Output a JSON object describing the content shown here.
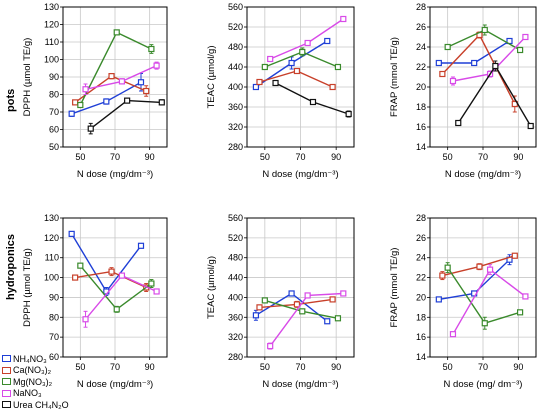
{
  "row_labels": [
    "pots",
    "hydroponics"
  ],
  "legend": [
    {
      "label": "NH₄NO₃",
      "color": "#1f3fd6"
    },
    {
      "label": "Ca(NO₃)₂",
      "color": "#c8402a"
    },
    {
      "label": "Mg(NO₃)₂",
      "color": "#3a8a2c"
    },
    {
      "label": "NaNO₃",
      "color": "#d84ae8"
    },
    {
      "label": "Urea CH₄N₂O",
      "color": "#111111"
    }
  ],
  "chart_data": [
    {
      "type": "line",
      "panel": "pots-dpph",
      "xlabel": "N dose (mg/dm⁻³)",
      "ylabel": "DPPH (µmol TE/g)",
      "xlim": [
        40,
        100
      ],
      "xticks": [
        50,
        70,
        90
      ],
      "ylim": [
        50,
        130
      ],
      "yticks": [
        50,
        60,
        70,
        80,
        90,
        100,
        110,
        120,
        130
      ],
      "series": [
        {
          "name": "NH₄NO₃",
          "x": [
            45,
            65,
            85
          ],
          "y": [
            69,
            76,
            87
          ],
          "err": [
            1.5,
            1.5,
            5
          ]
        },
        {
          "name": "Ca(NO₃)₂",
          "x": [
            47,
            68,
            88
          ],
          "y": [
            75.5,
            90.5,
            82
          ],
          "err": [
            1,
            1.5,
            3
          ]
        },
        {
          "name": "Mg(NO₃)₂",
          "x": [
            50,
            71,
            91
          ],
          "y": [
            74,
            115.5,
            106
          ],
          "err": [
            1,
            1,
            2.5
          ]
        },
        {
          "name": "NaNO₃",
          "x": [
            53,
            74,
            94
          ],
          "y": [
            83,
            87.5,
            96.5
          ],
          "err": [
            3,
            1.5,
            2
          ]
        },
        {
          "name": "Urea CH₄N₂O",
          "x": [
            56,
            77,
            97
          ],
          "y": [
            60.5,
            76.5,
            75.5
          ],
          "err": [
            3,
            1,
            1.5
          ]
        }
      ]
    },
    {
      "type": "line",
      "panel": "pots-teac",
      "xlabel": "N dose (mg/dm⁻³)",
      "ylabel": "TEAC (µmol/g)",
      "xlim": [
        40,
        100
      ],
      "xticks": [
        50,
        70,
        90
      ],
      "ylim": [
        280,
        560
      ],
      "yticks": [
        280,
        320,
        360,
        400,
        440,
        480,
        520,
        560
      ],
      "series": [
        {
          "name": "NH₄NO₃",
          "x": [
            45,
            65,
            85
          ],
          "y": [
            400,
            448,
            492
          ],
          "err": [
            4,
            12,
            4
          ]
        },
        {
          "name": "Ca(NO₃)₂",
          "x": [
            47,
            68,
            88
          ],
          "y": [
            410,
            432,
            400
          ],
          "err": [
            4,
            4,
            4
          ]
        },
        {
          "name": "Mg(NO₃)₂",
          "x": [
            50,
            71,
            91
          ],
          "y": [
            440,
            470,
            440
          ],
          "err": [
            4,
            8,
            4
          ]
        },
        {
          "name": "NaNO₃",
          "x": [
            53,
            74,
            94
          ],
          "y": [
            456,
            488,
            536
          ],
          "err": [
            4,
            4,
            4
          ]
        },
        {
          "name": "Urea CH₄N₂O",
          "x": [
            56,
            77,
            97
          ],
          "y": [
            408,
            370,
            346
          ],
          "err": [
            4,
            4,
            6
          ]
        }
      ]
    },
    {
      "type": "line",
      "panel": "pots-frap",
      "xlabel": "N dose (mg/dm⁻³)",
      "ylabel": "FRAP (mmol TE/g)",
      "xlim": [
        40,
        100
      ],
      "xticks": [
        50,
        70,
        90
      ],
      "ylim": [
        14,
        28
      ],
      "yticks": [
        14,
        16,
        18,
        20,
        22,
        24,
        26,
        28
      ],
      "series": [
        {
          "name": "NH₄NO₃",
          "x": [
            45,
            65,
            85
          ],
          "y": [
            22.4,
            22.4,
            24.6
          ],
          "err": [
            0.2,
            0.2,
            0.2
          ]
        },
        {
          "name": "Ca(NO₃)₂",
          "x": [
            47,
            68,
            88
          ],
          "y": [
            21.3,
            25.2,
            18.3
          ],
          "err": [
            0.2,
            0.3,
            0.8
          ]
        },
        {
          "name": "Mg(NO₃)₂",
          "x": [
            50,
            71,
            91
          ],
          "y": [
            24,
            25.7,
            23.7
          ],
          "err": [
            0.2,
            0.5,
            0.2
          ]
        },
        {
          "name": "NaNO₃",
          "x": [
            53,
            74,
            94
          ],
          "y": [
            20.6,
            21.3,
            25
          ],
          "err": [
            0.4,
            0.3,
            0.2
          ]
        },
        {
          "name": "Urea CH₄N₂O",
          "x": [
            56,
            77,
            97
          ],
          "y": [
            16.4,
            22.1,
            16.1
          ],
          "err": [
            0.1,
            0.5,
            0.1
          ]
        }
      ]
    },
    {
      "type": "line",
      "panel": "hydro-dpph",
      "xlabel": "N dose (mg/dm⁻³)",
      "ylabel": "DPPH (µmol TE/g)",
      "xlim": [
        40,
        100
      ],
      "xticks": [
        50,
        70,
        90
      ],
      "ylim": [
        60,
        130
      ],
      "yticks": [
        60,
        70,
        80,
        90,
        100,
        110,
        120,
        130
      ],
      "series": [
        {
          "name": "NH₄NO₃",
          "x": [
            45,
            65,
            85
          ],
          "y": [
            122,
            93,
            116
          ],
          "err": [
            1,
            2,
            1
          ]
        },
        {
          "name": "Ca(NO₃)₂",
          "x": [
            47,
            68,
            88
          ],
          "y": [
            100,
            103,
            95
          ],
          "err": [
            1,
            2,
            2
          ]
        },
        {
          "name": "Mg(NO₃)₂",
          "x": [
            50,
            71,
            91
          ],
          "y": [
            106,
            84,
            97
          ],
          "err": [
            1,
            1.5,
            2
          ]
        },
        {
          "name": "NaNO₃",
          "x": [
            53,
            74,
            94
          ],
          "y": [
            79,
            101,
            93
          ],
          "err": [
            4,
            1,
            1
          ]
        }
      ]
    },
    {
      "type": "line",
      "panel": "hydro-teac",
      "xlabel": "N dose (mg/dm⁻³)",
      "ylabel": "TEAC (µmol/g)",
      "xlim": [
        40,
        100
      ],
      "xticks": [
        50,
        70,
        90
      ],
      "ylim": [
        280,
        560
      ],
      "yticks": [
        280,
        320,
        360,
        400,
        440,
        480,
        520,
        560
      ],
      "series": [
        {
          "name": "NH₄NO₃",
          "x": [
            45,
            65,
            85
          ],
          "y": [
            364,
            408,
            352
          ],
          "err": [
            10,
            4,
            4
          ]
        },
        {
          "name": "Ca(NO₃)₂",
          "x": [
            47,
            68,
            88
          ],
          "y": [
            380,
            386,
            396
          ],
          "err": [
            4,
            6,
            4
          ]
        },
        {
          "name": "Mg(NO₃)₂",
          "x": [
            50,
            71,
            91
          ],
          "y": [
            394,
            372,
            358
          ],
          "err": [
            4,
            4,
            4
          ]
        },
        {
          "name": "NaNO₃",
          "x": [
            53,
            74,
            94
          ],
          "y": [
            302,
            404,
            408
          ],
          "err": [
            6,
            4,
            4
          ]
        }
      ]
    },
    {
      "type": "line",
      "panel": "hydro-frap",
      "xlabel": "N dose (mg/ dm⁻³)",
      "ylabel": "FRAP (mmol TE/g)",
      "xlim": [
        40,
        100
      ],
      "xticks": [
        50,
        70,
        90
      ],
      "ylim": [
        14,
        28
      ],
      "yticks": [
        14,
        16,
        18,
        20,
        22,
        24,
        26,
        28
      ],
      "series": [
        {
          "name": "NH₄NO₃",
          "x": [
            45,
            65,
            85
          ],
          "y": [
            19.8,
            20.4,
            23.8
          ],
          "err": [
            0.2,
            0.2,
            0.5
          ]
        },
        {
          "name": "Ca(NO₃)₂",
          "x": [
            47,
            68,
            88
          ],
          "y": [
            22.2,
            23.1,
            24.2
          ],
          "err": [
            0.4,
            0.3,
            0.2
          ]
        },
        {
          "name": "Mg(NO₃)₂",
          "x": [
            50,
            71,
            91
          ],
          "y": [
            23,
            17.4,
            18.5
          ],
          "err": [
            0.5,
            0.6,
            0.2
          ]
        },
        {
          "name": "NaNO₃",
          "x": [
            53,
            74,
            94
          ],
          "y": [
            16.3,
            22.8,
            20.1
          ],
          "err": [
            0.2,
            0.5,
            0.2
          ]
        }
      ]
    }
  ]
}
